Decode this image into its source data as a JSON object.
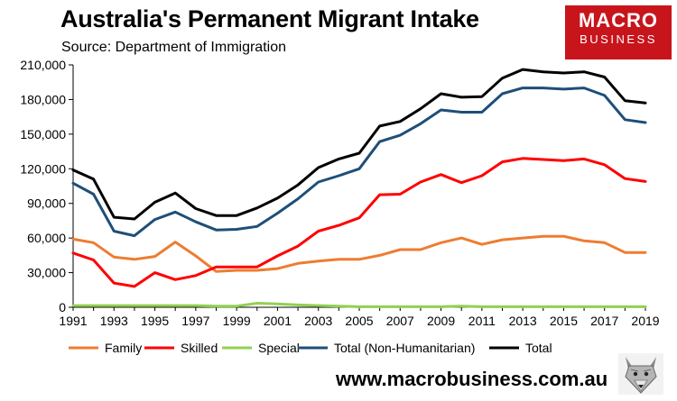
{
  "header": {
    "title": "Australia's Permanent Migrant Intake",
    "subtitle": "Source: Department of Immigration"
  },
  "logo": {
    "line1": "MACRO",
    "line2": "BUSINESS"
  },
  "footer": {
    "url": "www.macrobusiness.com.au"
  },
  "icons": {
    "mascot": "wolf-mascot-icon"
  },
  "colors": {
    "family": "#ED7D31",
    "skilled": "#FF0000",
    "special": "#92D050",
    "total_non_humanitarian": "#1F4E79",
    "total": "#000000",
    "brand_red": "#C8141B"
  },
  "chart_data": {
    "type": "line",
    "title": "Australia's Permanent Migrant Intake",
    "subtitle": "Source: Department of Immigration",
    "xlabel": "",
    "ylabel": "",
    "xlim": [
      1991,
      2019
    ],
    "ylim": [
      0,
      210000
    ],
    "x_ticks": [
      1991,
      1993,
      1995,
      1997,
      1999,
      2001,
      2003,
      2005,
      2007,
      2009,
      2011,
      2013,
      2015,
      2017,
      2019
    ],
    "x_tick_labels": [
      "1991",
      "1993",
      "1995",
      "1997",
      "1999",
      "2001",
      "2003",
      "2005",
      "2007",
      "2009",
      "2011",
      "2013",
      "2015",
      "2017",
      "2019"
    ],
    "y_ticks": [
      0,
      30000,
      60000,
      90000,
      120000,
      150000,
      180000,
      210000
    ],
    "y_tick_labels": [
      "0",
      "30,000",
      "60,000",
      "90,000",
      "120,000",
      "150,000",
      "180,000",
      "210,000"
    ],
    "grid": false,
    "legend_position": "bottom",
    "x": [
      1991,
      1992,
      1993,
      1994,
      1995,
      1996,
      1997,
      1998,
      1999,
      2000,
      2001,
      2002,
      2003,
      2004,
      2005,
      2006,
      2007,
      2008,
      2009,
      2010,
      2011,
      2012,
      2013,
      2014,
      2015,
      2016,
      2017,
      2018,
      2019
    ],
    "series": [
      {
        "name": "Family",
        "color_key": "family",
        "values": [
          59000,
          56000,
          43500,
          41500,
          44000,
          56500,
          44500,
          31000,
          32000,
          32000,
          33500,
          38000,
          40000,
          41500,
          41500,
          45000,
          50000,
          50000,
          56000,
          60000,
          54500,
          58500,
          60000,
          61500,
          61500,
          57500,
          56000,
          47500,
          47500
        ]
      },
      {
        "name": "Skilled",
        "color_key": "skilled",
        "values": [
          47000,
          41000,
          21000,
          18000,
          30000,
          24000,
          27500,
          35000,
          35000,
          35000,
          44500,
          53000,
          66000,
          71000,
          77500,
          97500,
          98000,
          108500,
          115000,
          108000,
          114000,
          126000,
          129000,
          128000,
          127000,
          128500,
          123500,
          111500,
          109000
        ]
      },
      {
        "name": "Special",
        "color_key": "special",
        "values": [
          1500,
          1500,
          1500,
          1500,
          1500,
          1500,
          1500,
          1000,
          1000,
          3500,
          3000,
          2000,
          1500,
          1000,
          500,
          500,
          500,
          500,
          500,
          1000,
          500,
          500,
          500,
          500,
          500,
          500,
          500,
          500,
          500
        ]
      },
      {
        "name": "Total (Non-Humanitarian)",
        "color_key": "total_non_humanitarian",
        "values": [
          107500,
          98000,
          66000,
          62000,
          76000,
          82500,
          74000,
          67000,
          67500,
          70000,
          81500,
          94000,
          108500,
          114000,
          120000,
          143500,
          149000,
          159000,
          171000,
          169000,
          169000,
          185000,
          190000,
          190000,
          189000,
          190000,
          183500,
          162500,
          160000
        ]
      },
      {
        "name": "Total",
        "color_key": "total",
        "values": [
          119000,
          111000,
          78000,
          76500,
          91000,
          99000,
          85500,
          79500,
          79500,
          86000,
          94500,
          106000,
          121000,
          128500,
          133500,
          157000,
          161000,
          172000,
          185000,
          182000,
          182500,
          198500,
          206000,
          204000,
          203000,
          204000,
          199500,
          179000,
          177000
        ]
      }
    ]
  }
}
